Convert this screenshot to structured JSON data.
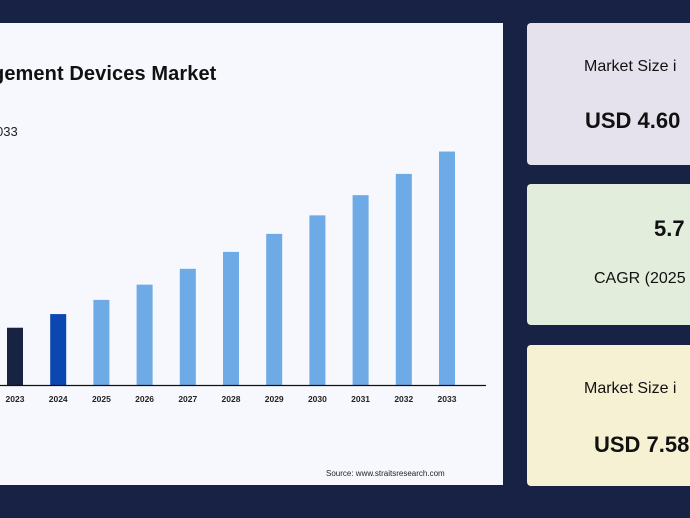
{
  "chart_data": {
    "type": "bar",
    "title": "gement Devices Market",
    "subtitle": "033",
    "categories": [
      "2023",
      "2024",
      "2025",
      "2026",
      "2027",
      "2028",
      "2029",
      "2030",
      "2031",
      "2032",
      "2033"
    ],
    "values": [
      4.35,
      4.6,
      4.86,
      5.14,
      5.43,
      5.74,
      6.07,
      6.41,
      6.78,
      7.17,
      7.58
    ],
    "bar_colors": [
      "#172340",
      "#0c47b1",
      "#6eaae6",
      "#6eaae6",
      "#6eaae6",
      "#6eaae6",
      "#6eaae6",
      "#6eaae6",
      "#6eaae6",
      "#6eaae6",
      "#6eaae6"
    ],
    "ylim": [
      3.3,
      7.7
    ],
    "grid": false,
    "source": "Source: www.straitsresearch.com"
  },
  "cards": [
    {
      "label": "Market Size i",
      "value": "USD 4.60"
    },
    {
      "value": "5.7",
      "label": "CAGR (2025"
    },
    {
      "label": "Market Size i",
      "value": "USD 7.58"
    }
  ]
}
